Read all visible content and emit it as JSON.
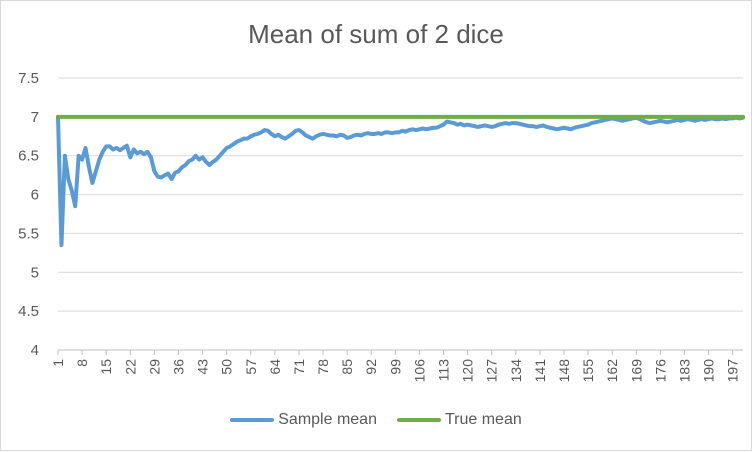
{
  "chart_data": {
    "type": "line",
    "title": "Mean of sum of 2 dice",
    "xlabel": "",
    "ylabel": "",
    "ylim": [
      4,
      7.5
    ],
    "yticks": [
      "4",
      "4.5",
      "5",
      "5.5",
      "6",
      "6.5",
      "7",
      "7.5"
    ],
    "xticks": [
      "1",
      "8",
      "15",
      "22",
      "29",
      "36",
      "43",
      "50",
      "57",
      "64",
      "71",
      "78",
      "85",
      "92",
      "99",
      "106",
      "113",
      "120",
      "127",
      "134",
      "141",
      "148",
      "155",
      "162",
      "169",
      "176",
      "183",
      "190",
      "197"
    ],
    "xlim": [
      1,
      200
    ],
    "grid": "horizontal",
    "legend_position": "bottom",
    "series": [
      {
        "name": "Sample mean",
        "color": "#5b9bd5",
        "points": [
          [
            1,
            7.0
          ],
          [
            2,
            5.35
          ],
          [
            3,
            6.5
          ],
          [
            4,
            6.2
          ],
          [
            5,
            6.05
          ],
          [
            6,
            5.85
          ],
          [
            7,
            6.5
          ],
          [
            8,
            6.45
          ],
          [
            9,
            6.6
          ],
          [
            10,
            6.35
          ],
          [
            11,
            6.15
          ],
          [
            12,
            6.3
          ],
          [
            13,
            6.45
          ],
          [
            14,
            6.55
          ],
          [
            15,
            6.62
          ],
          [
            16,
            6.62
          ],
          [
            17,
            6.58
          ],
          [
            18,
            6.6
          ],
          [
            19,
            6.57
          ],
          [
            20,
            6.6
          ],
          [
            21,
            6.63
          ],
          [
            22,
            6.48
          ],
          [
            23,
            6.58
          ],
          [
            24,
            6.53
          ],
          [
            25,
            6.55
          ],
          [
            26,
            6.52
          ],
          [
            27,
            6.55
          ],
          [
            28,
            6.48
          ],
          [
            29,
            6.3
          ],
          [
            30,
            6.23
          ],
          [
            31,
            6.22
          ],
          [
            32,
            6.25
          ],
          [
            33,
            6.27
          ],
          [
            34,
            6.2
          ],
          [
            35,
            6.28
          ],
          [
            36,
            6.3
          ],
          [
            37,
            6.35
          ],
          [
            38,
            6.38
          ],
          [
            39,
            6.43
          ],
          [
            40,
            6.45
          ],
          [
            41,
            6.5
          ],
          [
            42,
            6.45
          ],
          [
            43,
            6.48
          ],
          [
            44,
            6.42
          ],
          [
            45,
            6.38
          ],
          [
            46,
            6.42
          ],
          [
            47,
            6.45
          ],
          [
            48,
            6.5
          ],
          [
            49,
            6.55
          ],
          [
            50,
            6.6
          ],
          [
            51,
            6.62
          ],
          [
            52,
            6.65
          ],
          [
            53,
            6.68
          ],
          [
            54,
            6.7
          ],
          [
            55,
            6.72
          ],
          [
            56,
            6.72
          ],
          [
            57,
            6.75
          ],
          [
            58,
            6.77
          ],
          [
            59,
            6.78
          ],
          [
            60,
            6.8
          ],
          [
            61,
            6.83
          ],
          [
            62,
            6.82
          ],
          [
            63,
            6.78
          ],
          [
            64,
            6.75
          ],
          [
            65,
            6.77
          ],
          [
            66,
            6.74
          ],
          [
            67,
            6.72
          ],
          [
            68,
            6.75
          ],
          [
            69,
            6.78
          ],
          [
            70,
            6.82
          ],
          [
            71,
            6.83
          ],
          [
            72,
            6.8
          ],
          [
            73,
            6.76
          ],
          [
            74,
            6.74
          ],
          [
            75,
            6.72
          ],
          [
            76,
            6.75
          ],
          [
            77,
            6.77
          ],
          [
            78,
            6.78
          ],
          [
            79,
            6.77
          ],
          [
            80,
            6.76
          ],
          [
            81,
            6.76
          ],
          [
            82,
            6.75
          ],
          [
            83,
            6.77
          ],
          [
            84,
            6.76
          ],
          [
            85,
            6.73
          ],
          [
            86,
            6.74
          ],
          [
            87,
            6.76
          ],
          [
            88,
            6.77
          ],
          [
            89,
            6.76
          ],
          [
            90,
            6.78
          ],
          [
            91,
            6.79
          ],
          [
            92,
            6.78
          ],
          [
            93,
            6.78
          ],
          [
            94,
            6.79
          ],
          [
            95,
            6.78
          ],
          [
            96,
            6.8
          ],
          [
            97,
            6.8
          ],
          [
            98,
            6.79
          ],
          [
            99,
            6.8
          ],
          [
            100,
            6.8
          ],
          [
            101,
            6.82
          ],
          [
            102,
            6.81
          ],
          [
            103,
            6.83
          ],
          [
            104,
            6.84
          ],
          [
            105,
            6.83
          ],
          [
            106,
            6.84
          ],
          [
            107,
            6.85
          ],
          [
            108,
            6.84
          ],
          [
            109,
            6.85
          ],
          [
            110,
            6.86
          ],
          [
            111,
            6.86
          ],
          [
            112,
            6.88
          ],
          [
            113,
            6.9
          ],
          [
            114,
            6.94
          ],
          [
            115,
            6.93
          ],
          [
            116,
            6.92
          ],
          [
            117,
            6.9
          ],
          [
            118,
            6.91
          ],
          [
            119,
            6.89
          ],
          [
            120,
            6.9
          ],
          [
            121,
            6.89
          ],
          [
            122,
            6.88
          ],
          [
            123,
            6.87
          ],
          [
            124,
            6.88
          ],
          [
            125,
            6.89
          ],
          [
            126,
            6.88
          ],
          [
            127,
            6.87
          ],
          [
            128,
            6.88
          ],
          [
            129,
            6.9
          ],
          [
            130,
            6.91
          ],
          [
            131,
            6.92
          ],
          [
            132,
            6.91
          ],
          [
            133,
            6.92
          ],
          [
            134,
            6.92
          ],
          [
            135,
            6.91
          ],
          [
            136,
            6.9
          ],
          [
            137,
            6.89
          ],
          [
            138,
            6.88
          ],
          [
            139,
            6.88
          ],
          [
            140,
            6.87
          ],
          [
            141,
            6.88
          ],
          [
            142,
            6.89
          ],
          [
            143,
            6.87
          ],
          [
            144,
            6.86
          ],
          [
            145,
            6.85
          ],
          [
            146,
            6.84
          ],
          [
            147,
            6.85
          ],
          [
            148,
            6.86
          ],
          [
            149,
            6.85
          ],
          [
            150,
            6.84
          ],
          [
            151,
            6.86
          ],
          [
            152,
            6.87
          ],
          [
            153,
            6.88
          ],
          [
            154,
            6.89
          ],
          [
            155,
            6.9
          ],
          [
            156,
            6.92
          ],
          [
            157,
            6.93
          ],
          [
            158,
            6.94
          ],
          [
            159,
            6.95
          ],
          [
            160,
            6.96
          ],
          [
            161,
            6.97
          ],
          [
            162,
            6.98
          ],
          [
            163,
            6.97
          ],
          [
            164,
            6.96
          ],
          [
            165,
            6.95
          ],
          [
            166,
            6.96
          ],
          [
            167,
            6.97
          ],
          [
            168,
            6.98
          ],
          [
            169,
            6.99
          ],
          [
            170,
            6.97
          ],
          [
            171,
            6.95
          ],
          [
            172,
            6.93
          ],
          [
            173,
            6.92
          ],
          [
            174,
            6.93
          ],
          [
            175,
            6.94
          ],
          [
            176,
            6.95
          ],
          [
            177,
            6.94
          ],
          [
            178,
            6.93
          ],
          [
            179,
            6.94
          ],
          [
            180,
            6.95
          ],
          [
            181,
            6.96
          ],
          [
            182,
            6.95
          ],
          [
            183,
            6.96
          ],
          [
            184,
            6.97
          ],
          [
            185,
            6.96
          ],
          [
            186,
            6.95
          ],
          [
            187,
            6.96
          ],
          [
            188,
            6.97
          ],
          [
            189,
            6.96
          ],
          [
            190,
            6.97
          ],
          [
            191,
            6.98
          ],
          [
            192,
            6.97
          ],
          [
            193,
            6.97
          ],
          [
            194,
            6.98
          ],
          [
            195,
            6.97
          ],
          [
            196,
            6.98
          ],
          [
            197,
            6.98
          ],
          [
            198,
            6.99
          ],
          [
            199,
            6.98
          ],
          [
            200,
            6.99
          ]
        ]
      },
      {
        "name": "True mean",
        "color": "#70ad47",
        "points": [
          [
            1,
            7.0
          ],
          [
            200,
            7.0
          ]
        ]
      }
    ]
  },
  "colors": {
    "grid": "#d9d9d9",
    "text": "#595959"
  }
}
